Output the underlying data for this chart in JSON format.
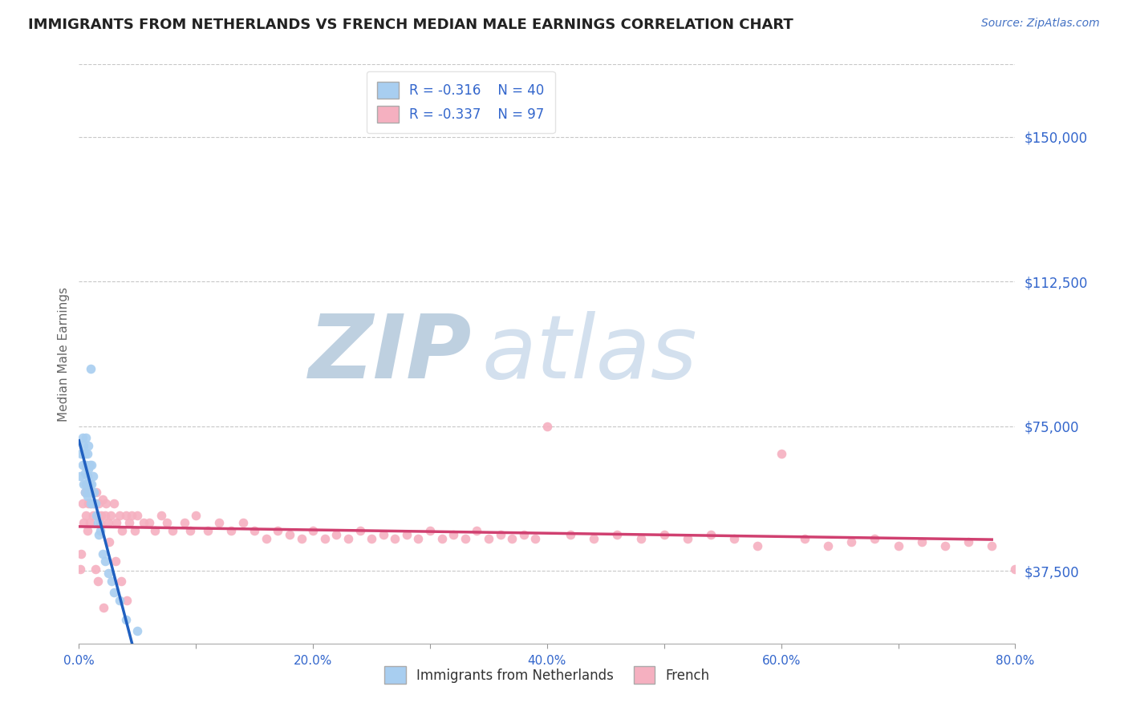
{
  "title": "IMMIGRANTS FROM NETHERLANDS VS FRENCH MEDIAN MALE EARNINGS CORRELATION CHART",
  "source_text": "Source: ZipAtlas.com",
  "ylabel": "Median Male Earnings",
  "xlim": [
    0.0,
    0.8
  ],
  "ylim": [
    18750,
    168750
  ],
  "xtick_values": [
    0.0,
    0.1,
    0.2,
    0.3,
    0.4,
    0.5,
    0.6,
    0.7,
    0.8
  ],
  "xtick_labels": [
    "0.0%",
    "",
    "20.0%",
    "",
    "40.0%",
    "",
    "60.0%",
    "",
    "80.0%"
  ],
  "ytick_values": [
    37500,
    75000,
    112500,
    150000
  ],
  "ytick_labels": [
    "$37,500",
    "$75,000",
    "$112,500",
    "$150,000"
  ],
  "legend_r1": "R = -0.316",
  "legend_n1": "N = 40",
  "legend_r2": "R = -0.337",
  "legend_n2": "N = 97",
  "legend_label1": "Immigrants from Netherlands",
  "legend_label2": "French",
  "color_blue_fill": "#A8CEF0",
  "color_blue_line": "#2060C0",
  "color_pink_fill": "#F5B0C0",
  "color_pink_line": "#D04070",
  "color_axis_blue": "#3366CC",
  "color_title": "#222222",
  "color_source": "#4472C4",
  "color_grid": "#C8C8C8",
  "color_watermark": "#D8E8F5",
  "color_dashed": "#B8C8E0",
  "background": "#FFFFFF",
  "watermark_zip": "ZIP",
  "watermark_atlas": "atlas",
  "nl_x": [
    0.001,
    0.002,
    0.003,
    0.003,
    0.004,
    0.004,
    0.005,
    0.005,
    0.005,
    0.006,
    0.006,
    0.006,
    0.007,
    0.007,
    0.007,
    0.008,
    0.008,
    0.008,
    0.009,
    0.009,
    0.01,
    0.01,
    0.011,
    0.011,
    0.012,
    0.012,
    0.013,
    0.014,
    0.015,
    0.016,
    0.017,
    0.018,
    0.02,
    0.022,
    0.025,
    0.028,
    0.03,
    0.035,
    0.04,
    0.05
  ],
  "nl_y": [
    62000,
    68000,
    72000,
    65000,
    70000,
    60000,
    68000,
    63000,
    58000,
    72000,
    65000,
    60000,
    68000,
    62000,
    57000,
    70000,
    64000,
    58000,
    65000,
    60000,
    90000,
    55000,
    65000,
    60000,
    55000,
    62000,
    58000,
    55000,
    52000,
    50000,
    47000,
    48000,
    42000,
    40000,
    37000,
    35000,
    32000,
    30000,
    25000,
    22000
  ],
  "fr_x": [
    0.001,
    0.002,
    0.003,
    0.004,
    0.005,
    0.006,
    0.007,
    0.008,
    0.009,
    0.01,
    0.012,
    0.013,
    0.015,
    0.016,
    0.017,
    0.018,
    0.019,
    0.02,
    0.022,
    0.023,
    0.025,
    0.027,
    0.03,
    0.032,
    0.035,
    0.037,
    0.04,
    0.043,
    0.045,
    0.048,
    0.05,
    0.055,
    0.06,
    0.065,
    0.07,
    0.075,
    0.08,
    0.09,
    0.095,
    0.1,
    0.11,
    0.12,
    0.13,
    0.14,
    0.15,
    0.16,
    0.17,
    0.18,
    0.19,
    0.2,
    0.21,
    0.22,
    0.23,
    0.24,
    0.25,
    0.26,
    0.27,
    0.28,
    0.29,
    0.3,
    0.31,
    0.32,
    0.33,
    0.34,
    0.35,
    0.36,
    0.37,
    0.38,
    0.39,
    0.4,
    0.42,
    0.44,
    0.46,
    0.48,
    0.5,
    0.52,
    0.54,
    0.56,
    0.58,
    0.6,
    0.62,
    0.64,
    0.66,
    0.68,
    0.7,
    0.72,
    0.74,
    0.76,
    0.78,
    0.8,
    0.014,
    0.016,
    0.021,
    0.026,
    0.031,
    0.036,
    0.041
  ],
  "fr_y": [
    38000,
    42000,
    55000,
    50000,
    58000,
    52000,
    48000,
    55000,
    50000,
    55000,
    52000,
    55000,
    58000,
    52000,
    55000,
    50000,
    52000,
    56000,
    52000,
    55000,
    50000,
    52000,
    55000,
    50000,
    52000,
    48000,
    52000,
    50000,
    52000,
    48000,
    52000,
    50000,
    50000,
    48000,
    52000,
    50000,
    48000,
    50000,
    48000,
    52000,
    48000,
    50000,
    48000,
    50000,
    48000,
    46000,
    48000,
    47000,
    46000,
    48000,
    46000,
    47000,
    46000,
    48000,
    46000,
    47000,
    46000,
    47000,
    46000,
    48000,
    46000,
    47000,
    46000,
    48000,
    46000,
    47000,
    46000,
    47000,
    46000,
    75000,
    47000,
    46000,
    47000,
    46000,
    47000,
    46000,
    47000,
    46000,
    44000,
    68000,
    46000,
    44000,
    45000,
    46000,
    44000,
    45000,
    44000,
    45000,
    44000,
    38000,
    38000,
    35000,
    28000,
    45000,
    40000,
    35000,
    30000
  ],
  "nl_trend_x_start": 0.0,
  "nl_trend_x_solid_end": 0.135,
  "nl_trend_x_dash_end": 0.38,
  "fr_trend_x_start": 0.0,
  "fr_trend_x_end": 0.78
}
